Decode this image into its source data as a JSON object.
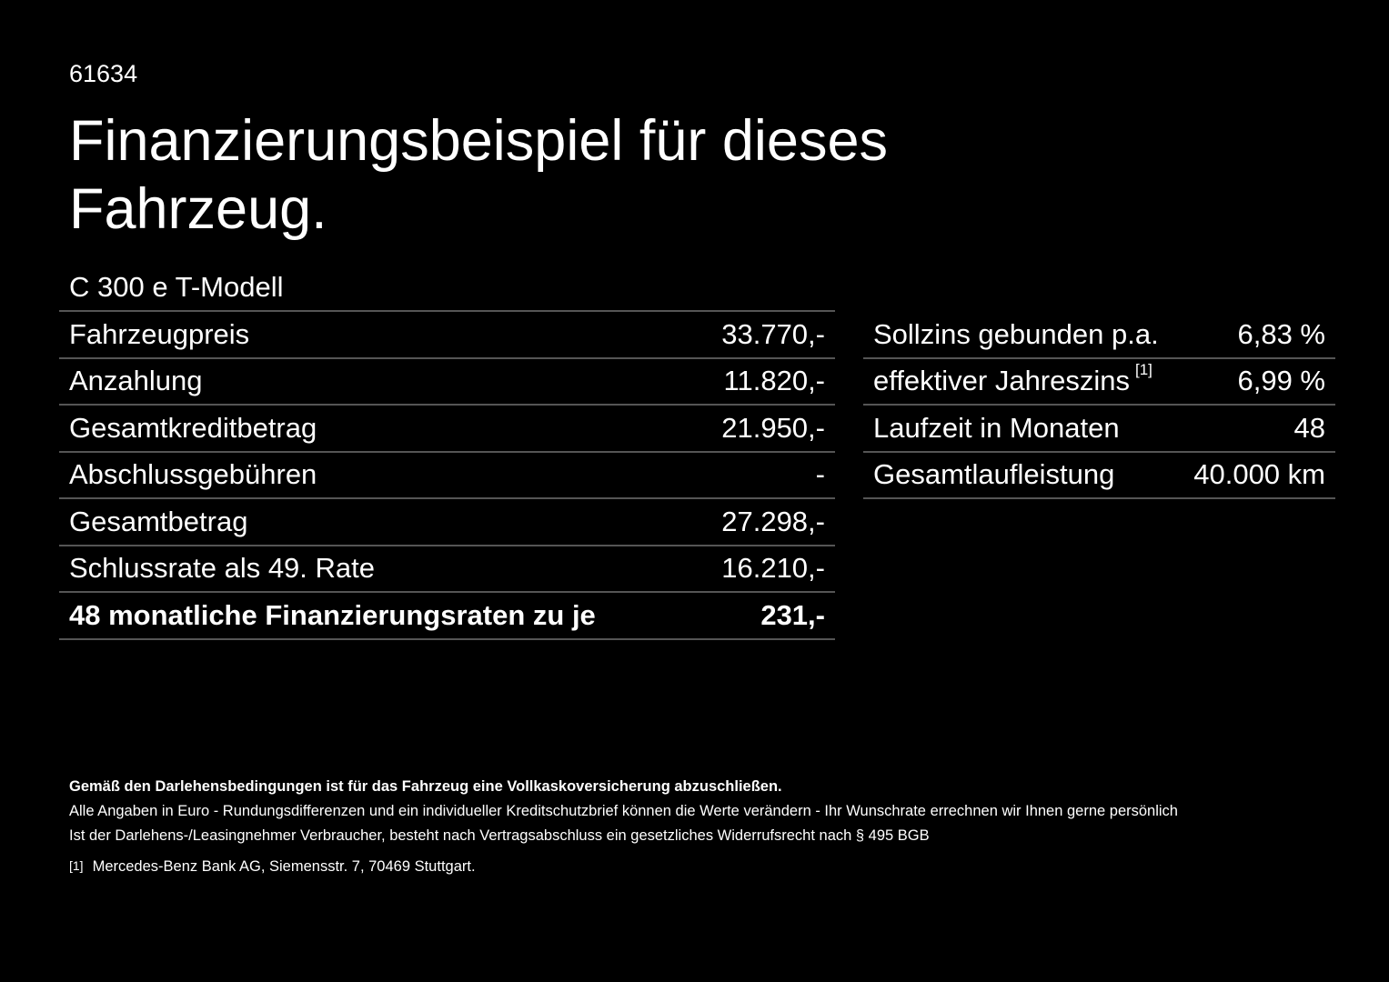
{
  "code": "61634",
  "title": "Finanzierungsbeispiel für dieses Fahrzeug.",
  "model": "C 300 e T-Modell",
  "left_table": [
    {
      "label": "Fahrzeugpreis",
      "value": "33.770,-"
    },
    {
      "label": "Anzahlung",
      "value": "11.820,-"
    },
    {
      "label": "Gesamtkreditbetrag",
      "value": "21.950,-"
    },
    {
      "label": "Abschlussgebühren",
      "value": "-"
    },
    {
      "label": "Gesamtbetrag",
      "value": "27.298,-"
    },
    {
      "label": "Schlussrate als 49. Rate",
      "value": "16.210,-"
    },
    {
      "label": "48 monatliche Finanzierungsraten zu je",
      "value": "231,-"
    }
  ],
  "right_table": [
    {
      "label": "Sollzins gebunden p.a.",
      "value": "6,83 %"
    },
    {
      "label": "effektiver Jahreszins",
      "footnote": "[1]",
      "value": "6,99 %"
    },
    {
      "label": "Laufzeit in Monaten",
      "value": "48"
    },
    {
      "label": "Gesamtlaufleistung",
      "value": "40.000 km"
    }
  ],
  "footer": {
    "bold_line": "Gemäß den Darlehensbedingungen ist für das Fahrzeug eine Vollkaskoversicherung abzuschließen.",
    "line1": "Alle Angaben in Euro - Rundungsdifferenzen und ein individueller Kreditschutzbrief können die Werte verändern - Ihr Wunschrate errechnen wir Ihnen gerne persönlich",
    "line2": "Ist der Darlehens-/Leasingnehmer Verbraucher, besteht nach Vertragsabschluss ein gesetzliches Widerrufsrecht nach § 495 BGB",
    "footnote_marker": "[1]",
    "footnote_text": "Mercedes-Benz Bank AG, Siemensstr. 7, 70469 Stuttgart."
  }
}
